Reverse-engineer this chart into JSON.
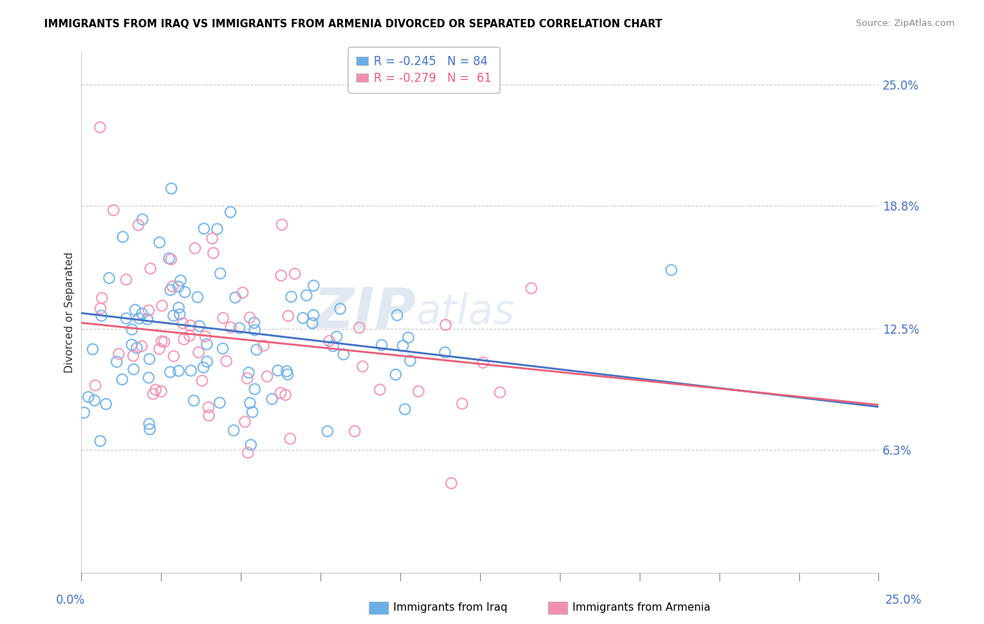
{
  "title": "IMMIGRANTS FROM IRAQ VS IMMIGRANTS FROM ARMENIA DIVORCED OR SEPARATED CORRELATION CHART",
  "source": "Source: ZipAtlas.com",
  "ylabel": "Divorced or Separated",
  "xmin": 0.0,
  "xmax": 0.25,
  "ymin": 0.0,
  "ymax": 0.2667,
  "ytick_vals": [
    0.063,
    0.125,
    0.188,
    0.25
  ],
  "ytick_labels": [
    "6.3%",
    "12.5%",
    "18.8%",
    "25.0%"
  ],
  "iraq_R": -0.245,
  "iraq_N": 84,
  "armenia_R": -0.279,
  "armenia_N": 61,
  "iraq_color": "#6aaee8",
  "armenia_color": "#f090b0",
  "iraq_line_color": "#4472c4",
  "armenia_line_color": "#e8607a",
  "watermark_zip": "ZIP",
  "watermark_atlas": "atlas",
  "legend_iraq_label": "R = -0.245   N = 84",
  "legend_armenia_label": "R = -0.279   N =  61",
  "bottom_iraq_label": "Immigrants from Iraq",
  "bottom_armenia_label": "Immigrants from Armenia"
}
